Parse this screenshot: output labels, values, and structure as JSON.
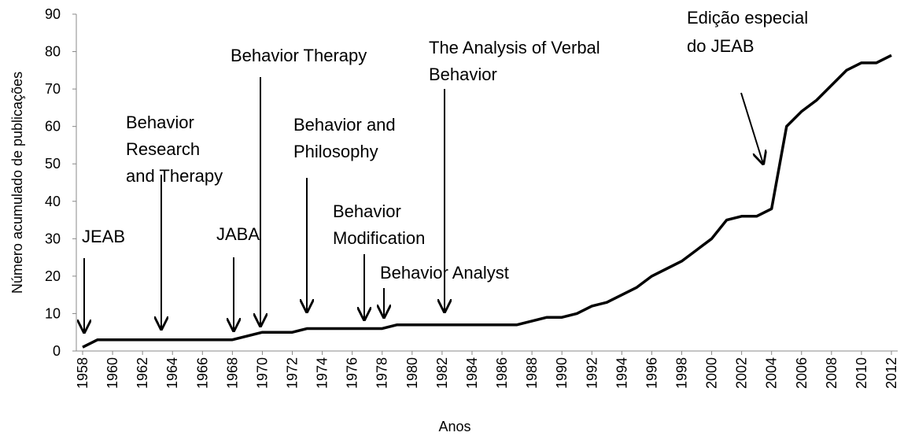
{
  "chart_data": {
    "type": "line",
    "xlabel": "Anos",
    "ylabel": "Número acumulado de publicações",
    "x": [
      1958,
      1959,
      1960,
      1961,
      1962,
      1963,
      1964,
      1965,
      1966,
      1967,
      1968,
      1969,
      1970,
      1971,
      1972,
      1973,
      1974,
      1975,
      1976,
      1977,
      1978,
      1979,
      1980,
      1981,
      1982,
      1983,
      1984,
      1985,
      1986,
      1987,
      1988,
      1989,
      1990,
      1991,
      1992,
      1993,
      1994,
      1995,
      1996,
      1997,
      1998,
      1999,
      2000,
      2001,
      2002,
      2003,
      2004,
      2005,
      2006,
      2007,
      2008,
      2009,
      2010,
      2011,
      2012
    ],
    "series": [
      {
        "color": "#000000",
        "values": [
          1,
          3,
          3,
          3,
          3,
          3,
          3,
          3,
          3,
          3,
          3,
          4,
          5,
          5,
          5,
          6,
          6,
          6,
          6,
          6,
          6,
          7,
          7,
          7,
          7,
          7,
          7,
          7,
          7,
          7,
          8,
          9,
          9,
          10,
          12,
          13,
          15,
          17,
          20,
          22,
          24,
          27,
          30,
          35,
          36,
          36,
          38,
          60,
          64,
          67,
          71,
          75,
          77,
          77,
          79
        ]
      }
    ],
    "xlim": [
      1958,
      2012
    ],
    "xticks": [
      1958,
      1960,
      1962,
      1964,
      1966,
      1968,
      1970,
      1972,
      1974,
      1976,
      1978,
      1980,
      1982,
      1984,
      1986,
      1988,
      1990,
      1992,
      1994,
      1996,
      1998,
      2000,
      2002,
      2004,
      2006,
      2008,
      2010,
      2012
    ],
    "ylim": [
      0,
      90
    ],
    "yticks": [
      0,
      10,
      20,
      30,
      40,
      50,
      60,
      70,
      80,
      90
    ],
    "grid": false,
    "annotations": [
      {
        "text": [
          "JEAB"
        ]
      },
      {
        "text": [
          "Behavior",
          "Research",
          "and Therapy"
        ]
      },
      {
        "text": [
          "JABA"
        ]
      },
      {
        "text": [
          "Behavior Therapy"
        ]
      },
      {
        "text": [
          "Behavior and",
          "Philosophy"
        ]
      },
      {
        "text": [
          "Behavior",
          "Modification"
        ]
      },
      {
        "text": [
          "Behavior Analyst"
        ]
      },
      {
        "text": [
          "The Analysis of Verbal",
          "Behavior"
        ]
      },
      {
        "text": [
          "Edição especial",
          "do JEAB"
        ]
      }
    ]
  }
}
